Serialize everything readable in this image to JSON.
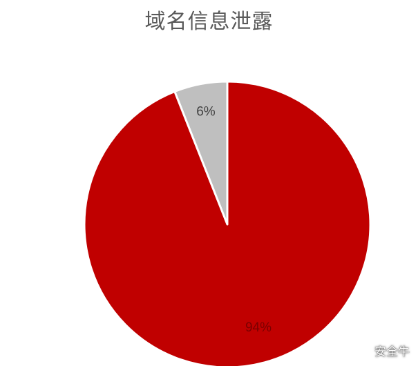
{
  "chart_data": {
    "type": "pie",
    "title": "域名信息泄露",
    "slices": [
      {
        "label": "6%",
        "value": 6,
        "color": "#bfbfbf",
        "label_color": "#404040"
      },
      {
        "label": "94%",
        "value": 94,
        "color": "#c00000",
        "label_color": "#7a0000"
      }
    ],
    "start_angle": "12 o'clock",
    "direction": "counter-clockwise",
    "slice_border_color": "#ffffff"
  },
  "watermark": {
    "text": "安全牛",
    "icon": "wechat-icon"
  }
}
